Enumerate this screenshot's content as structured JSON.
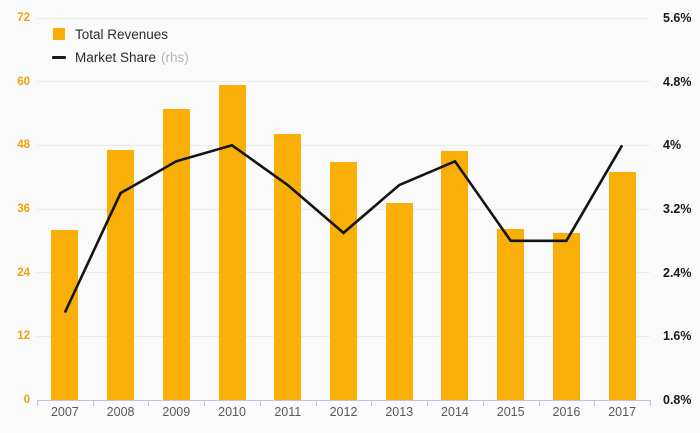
{
  "chart_data": {
    "type": "bar+line combo",
    "title": "",
    "categories": [
      "2007",
      "2008",
      "2009",
      "2010",
      "2011",
      "2012",
      "2013",
      "2014",
      "2015",
      "2016",
      "2017"
    ],
    "series": [
      {
        "name": "Total Revenues",
        "type": "bar",
        "axis": "left",
        "values": [
          32.1,
          47.1,
          54.9,
          59.4,
          50.2,
          44.9,
          37.2,
          46.9,
          32.2,
          31.5,
          43.0
        ]
      },
      {
        "name": "Market Share",
        "legend_suffix": "(rhs)",
        "type": "line",
        "axis": "right",
        "values": [
          1.9,
          3.4,
          3.8,
          4.0,
          3.5,
          2.9,
          3.5,
          3.8,
          2.8,
          2.8,
          4.0
        ]
      }
    ],
    "left_axis": {
      "min": 0,
      "max": 72,
      "tick_labels": [
        "0",
        "12",
        "24",
        "36",
        "48",
        "60",
        "72"
      ]
    },
    "right_axis": {
      "min": 0.8,
      "max": 5.6,
      "tick_labels": [
        "0.8%",
        "1.6%",
        "2.4%",
        "3.2%",
        "4%",
        "4.8%",
        "5.6%"
      ]
    },
    "grid": true,
    "legend_position": "top-left"
  },
  "colors": {
    "background": "#FAFAFA",
    "bar": "#F9AF08",
    "line": "#141414",
    "grid": "#EBEBEB",
    "axis_line": "#BCC5DF",
    "left_label": "#F2A007",
    "right_label": "#1A1A1A",
    "x_label": "#595959",
    "legend_text": "#2B2B2B",
    "legend_muted": "#B5B5B5"
  }
}
